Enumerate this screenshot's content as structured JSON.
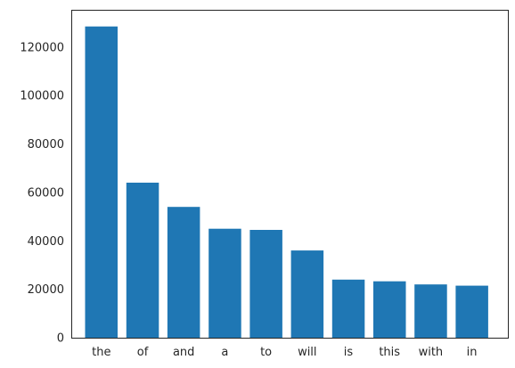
{
  "chart_data": {
    "type": "bar",
    "categories": [
      "the",
      "of",
      "and",
      "a",
      "to",
      "will",
      "is",
      "this",
      "with",
      "in"
    ],
    "values": [
      128500,
      64000,
      54000,
      45000,
      44500,
      36000,
      24000,
      23300,
      22000,
      21500
    ],
    "ylim": [
      0,
      135000
    ],
    "yticks": [
      0,
      20000,
      40000,
      60000,
      80000,
      100000,
      120000
    ],
    "ytick_labels": [
      "0",
      "20000",
      "40000",
      "60000",
      "80000",
      "100000",
      "120000"
    ],
    "title": "",
    "xlabel": "",
    "ylabel": "",
    "grid": false,
    "bar_color": "#1f77b4"
  }
}
